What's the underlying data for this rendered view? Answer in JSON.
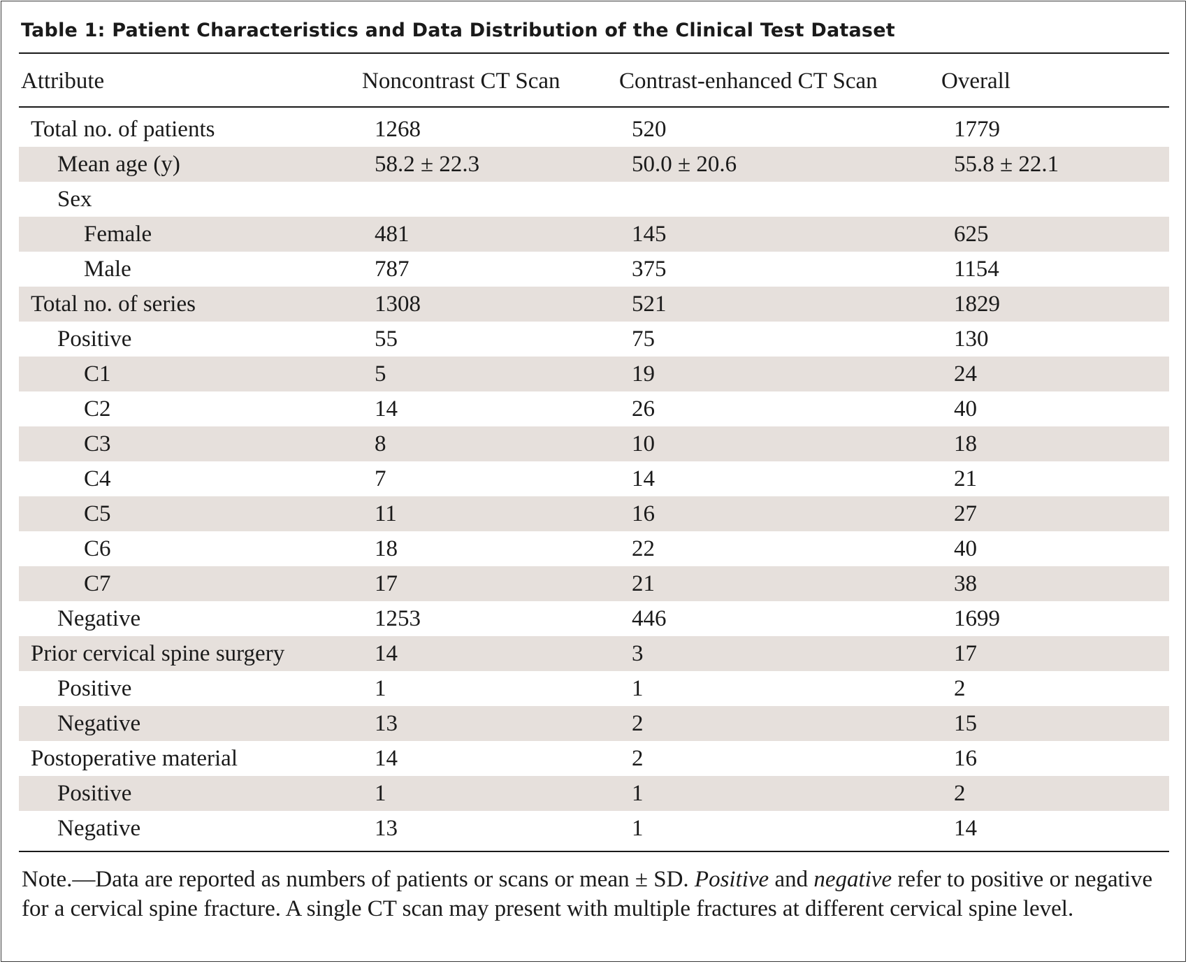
{
  "table": {
    "title": "Table 1: Patient Characteristics and Data Distribution of the Clinical Test Dataset",
    "headers": [
      "Attribute",
      "Noncontrast CT Scan",
      "Contrast-enhanced CT Scan",
      "Overall"
    ],
    "rows": [
      {
        "label": "Total no. of patients",
        "indent": 0,
        "values": [
          "1268",
          "520",
          "1779"
        ]
      },
      {
        "label": "Mean age (y)",
        "indent": 1,
        "values": [
          "58.2 ± 22.3",
          "50.0 ± 20.6",
          "55.8 ± 22.1"
        ]
      },
      {
        "label": "Sex",
        "indent": 1,
        "values": [
          "",
          "",
          ""
        ]
      },
      {
        "label": "Female",
        "indent": 2,
        "values": [
          "481",
          "145",
          "625"
        ]
      },
      {
        "label": "Male",
        "indent": 2,
        "values": [
          "787",
          "375",
          "1154"
        ]
      },
      {
        "label": "Total no. of series",
        "indent": 0,
        "values": [
          "1308",
          "521",
          "1829"
        ]
      },
      {
        "label": "Positive",
        "indent": 1,
        "values": [
          "55",
          "75",
          "130"
        ]
      },
      {
        "label": "C1",
        "indent": 2,
        "values": [
          "5",
          "19",
          "24"
        ]
      },
      {
        "label": "C2",
        "indent": 2,
        "values": [
          "14",
          "26",
          "40"
        ]
      },
      {
        "label": "C3",
        "indent": 2,
        "values": [
          "8",
          "10",
          "18"
        ]
      },
      {
        "label": "C4",
        "indent": 2,
        "values": [
          "7",
          "14",
          "21"
        ]
      },
      {
        "label": "C5",
        "indent": 2,
        "values": [
          "11",
          "16",
          "27"
        ]
      },
      {
        "label": "C6",
        "indent": 2,
        "values": [
          "18",
          "22",
          "40"
        ]
      },
      {
        "label": "C7",
        "indent": 2,
        "values": [
          "17",
          "21",
          "38"
        ]
      },
      {
        "label": "Negative",
        "indent": 1,
        "values": [
          "1253",
          "446",
          "1699"
        ]
      },
      {
        "label": "Prior cervical spine surgery",
        "indent": 0,
        "values": [
          "14",
          "3",
          "17"
        ]
      },
      {
        "label": "Positive",
        "indent": 1,
        "values": [
          "1",
          "1",
          "2"
        ]
      },
      {
        "label": "Negative",
        "indent": 1,
        "values": [
          "13",
          "2",
          "15"
        ]
      },
      {
        "label": "Postoperative material",
        "indent": 0,
        "values": [
          "14",
          "2",
          "16"
        ]
      },
      {
        "label": "Positive",
        "indent": 1,
        "values": [
          "1",
          "1",
          "2"
        ]
      },
      {
        "label": "Negative",
        "indent": 1,
        "values": [
          "13",
          "1",
          "14"
        ]
      }
    ],
    "note": {
      "prefix": "Note.—Data are reported as numbers of patients or scans or mean ± SD. ",
      "italic1": "Positive",
      "mid": " and ",
      "italic2": "negative",
      "suffix": " refer to positive or negative for a cervical spine fracture. A single CT scan may present with multiple fractures at different cervical spine level."
    },
    "colors": {
      "shade": "#e6e0dc",
      "text": "#1a1a1a"
    }
  }
}
